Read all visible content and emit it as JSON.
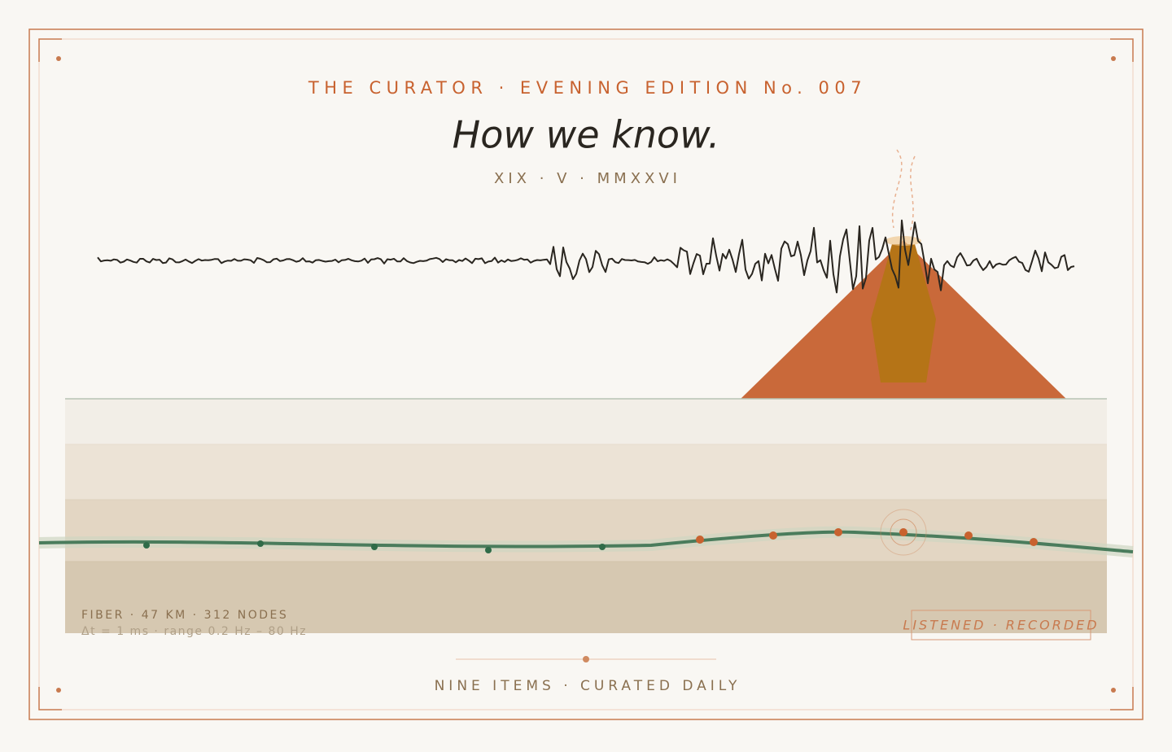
{
  "header": {
    "kicker": "THE CURATOR · EVENING EDITION No. 007",
    "title": "How we know.",
    "date": "XIX · V · MMXXVI"
  },
  "fiber": {
    "label": "FIBER · 47 KM · 312 NODES",
    "spec": "Δt = 1 ms · range 0.2 Hz – 80 Hz"
  },
  "stamp": "LISTENED · RECORDED",
  "footer": "NINE ITEMS · CURATED DAILY"
}
